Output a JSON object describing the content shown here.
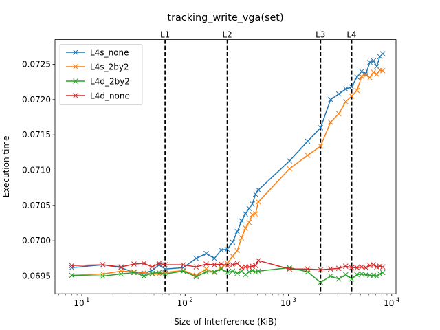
{
  "chart_data": {
    "type": "line",
    "title": "tracking_write_vga(set)",
    "xlabel": "Size of Interference (KiB)",
    "ylabel": "Execution time",
    "xscale": "log",
    "xlim": [
      5.5,
      11000
    ],
    "ylim": [
      0.06925,
      0.07285
    ],
    "yticks": [
      0.0695,
      0.07,
      0.0705,
      0.071,
      0.0715,
      0.072,
      0.0725
    ],
    "ytick_labels": [
      "0.0695",
      "0.0700",
      "0.0705",
      "0.0710",
      "0.0715",
      "0.0720",
      "0.0725"
    ],
    "xtick_exponents": [
      1,
      2,
      3,
      4
    ],
    "xtick_base": "10",
    "legend_position": "top-left",
    "vlines": [
      {
        "label": "L1",
        "x": 64
      },
      {
        "label": "L2",
        "x": 256
      },
      {
        "label": "L3",
        "x": 2048
      },
      {
        "label": "L4",
        "x": 4096
      }
    ],
    "series": [
      {
        "name": "L4s_none",
        "color": "#1f77b4",
        "x": [
          8,
          16,
          24,
          32,
          40,
          48,
          56,
          64,
          96,
          128,
          160,
          192,
          224,
          256,
          288,
          320,
          352,
          384,
          416,
          448,
          480,
          512,
          1024,
          1536,
          2048,
          2560,
          3072,
          3584,
          4096,
          4608,
          5120,
          5632,
          6144,
          6656,
          7168,
          7680,
          8192
        ],
        "y": [
          0.06962,
          0.06966,
          0.06962,
          0.06955,
          0.06954,
          0.06958,
          0.06966,
          0.0696,
          0.06962,
          0.06975,
          0.06982,
          0.06975,
          0.06987,
          0.06988,
          0.06998,
          0.07013,
          0.07028,
          0.07038,
          0.07046,
          0.07052,
          0.07066,
          0.07072,
          0.07113,
          0.07141,
          0.0716,
          0.072,
          0.07208,
          0.07215,
          0.07218,
          0.07232,
          0.0724,
          0.07237,
          0.07253,
          0.07255,
          0.07247,
          0.07261,
          0.07265
        ]
      },
      {
        "name": "L4s_2by2",
        "color": "#ff7f0e",
        "x": [
          8,
          16,
          24,
          32,
          40,
          48,
          56,
          64,
          96,
          128,
          160,
          192,
          224,
          256,
          288,
          320,
          352,
          384,
          416,
          448,
          480,
          512,
          1024,
          1536,
          2048,
          2560,
          3072,
          3584,
          4096,
          4608,
          5120,
          5632,
          6144,
          6656,
          7168,
          7680,
          8192
        ],
        "y": [
          0.06951,
          0.06953,
          0.06957,
          0.06956,
          0.06955,
          0.06953,
          0.06953,
          0.06955,
          0.06958,
          0.06951,
          0.0696,
          0.06955,
          0.06962,
          0.06968,
          0.06978,
          0.06986,
          0.07004,
          0.07018,
          0.07026,
          0.07037,
          0.07038,
          0.07055,
          0.07102,
          0.07121,
          0.07134,
          0.07168,
          0.0718,
          0.07197,
          0.07205,
          0.07213,
          0.07233,
          0.07235,
          0.07231,
          0.07239,
          0.07236,
          0.07242,
          0.07241
        ]
      },
      {
        "name": "L4d_2by2",
        "color": "#2ca02c",
        "x": [
          8,
          16,
          24,
          32,
          40,
          48,
          56,
          64,
          96,
          128,
          160,
          192,
          224,
          256,
          288,
          320,
          352,
          384,
          416,
          448,
          480,
          512,
          1024,
          1536,
          2048,
          2560,
          3072,
          3584,
          4096,
          4608,
          5120,
          5632,
          6144,
          6656,
          7168,
          7680,
          8192
        ],
        "y": [
          0.06951,
          0.0695,
          0.06953,
          0.06955,
          0.0695,
          0.06954,
          0.06955,
          0.06953,
          0.06957,
          0.06949,
          0.06956,
          0.06956,
          0.0696,
          0.06955,
          0.06957,
          0.06954,
          0.06957,
          0.06952,
          0.06956,
          0.06958,
          0.06956,
          0.06957,
          0.06962,
          0.06956,
          0.06941,
          0.0695,
          0.06946,
          0.06952,
          0.06946,
          0.06952,
          0.06953,
          0.06952,
          0.06951,
          0.06951,
          0.0695,
          0.06953,
          0.06955
        ]
      },
      {
        "name": "L4d_none",
        "color": "#d62728",
        "x": [
          8,
          16,
          24,
          32,
          40,
          48,
          56,
          64,
          96,
          128,
          160,
          192,
          224,
          256,
          288,
          320,
          352,
          384,
          416,
          448,
          480,
          512,
          1024,
          1536,
          2048,
          2560,
          3072,
          3584,
          4096,
          4608,
          5120,
          5632,
          6144,
          6656,
          7168,
          7680,
          8192
        ],
        "y": [
          0.06965,
          0.06966,
          0.06963,
          0.06967,
          0.06968,
          0.06963,
          0.06968,
          0.06966,
          0.06966,
          0.06963,
          0.06967,
          0.06966,
          0.06967,
          0.06965,
          0.06966,
          0.06968,
          0.06962,
          0.06963,
          0.06963,
          0.06964,
          0.06965,
          0.06972,
          0.0696,
          0.0696,
          0.06959,
          0.0696,
          0.06961,
          0.06964,
          0.06962,
          0.06962,
          0.06963,
          0.06962,
          0.06965,
          0.06966,
          0.06963,
          0.06964,
          0.06963
        ]
      }
    ]
  }
}
